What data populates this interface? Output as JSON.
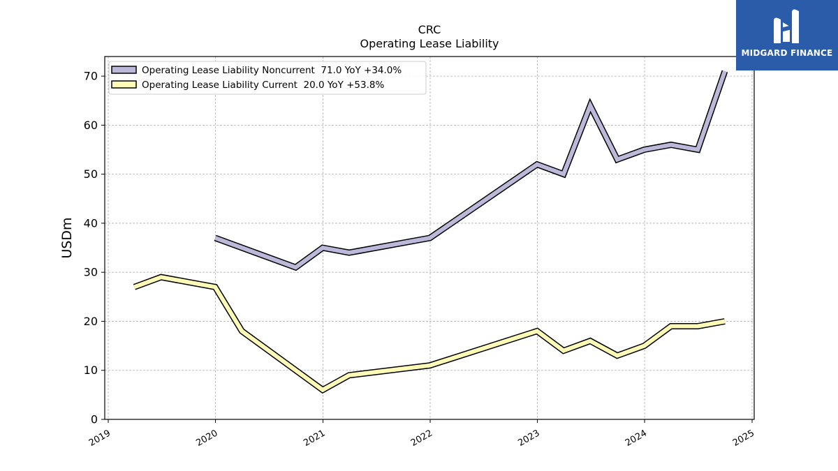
{
  "brand": {
    "name": "MIDGARD FINANCE",
    "color": "#2a5caa",
    "icon": "mf-monogram-icon"
  },
  "chart_data": {
    "type": "line",
    "title": "CRC",
    "subtitle": "Operating Lease Liability",
    "ylabel": "USDm",
    "xlabel": "",
    "ylim": [
      0,
      74
    ],
    "xlim": [
      "2019-01-01",
      "2025-01-01"
    ],
    "yticks": [
      0,
      10,
      20,
      30,
      40,
      50,
      60,
      70
    ],
    "xticks": [
      "2019",
      "2020",
      "2021",
      "2022",
      "2023",
      "2024",
      "2025"
    ],
    "grid": true,
    "legend_position": "top-left",
    "series": [
      {
        "name": "Operating Lease Liability Noncurrent",
        "legend": "Operating Lease Liability Noncurrent  71.0 YoY +34.0%",
        "color": "#bcb8d9",
        "x": [
          "2019-12-31",
          "2020-09-30",
          "2020-12-31",
          "2021-03-31",
          "2021-12-31",
          "2022-12-31",
          "2023-03-31",
          "2023-06-30",
          "2023-09-30",
          "2023-12-31",
          "2024-03-31",
          "2024-06-30",
          "2024-09-30"
        ],
        "values": [
          37,
          31,
          35,
          34,
          37,
          52,
          50,
          64,
          53,
          55,
          56,
          55,
          71
        ]
      },
      {
        "name": "Operating Lease Liability Current",
        "legend": "Operating Lease Liability Current  20.0 YoY +53.8%",
        "color": "#fefbb7",
        "x": [
          "2019-03-31",
          "2019-06-30",
          "2019-12-31",
          "2020-03-31",
          "2020-12-31",
          "2021-03-31",
          "2021-12-31",
          "2022-12-31",
          "2023-03-31",
          "2023-06-30",
          "2023-09-30",
          "2023-12-31",
          "2024-03-31",
          "2024-06-30",
          "2024-09-30"
        ],
        "values": [
          27,
          29,
          27,
          18,
          6,
          9,
          11,
          18,
          14,
          16,
          13,
          15,
          19,
          19,
          20
        ]
      }
    ]
  }
}
